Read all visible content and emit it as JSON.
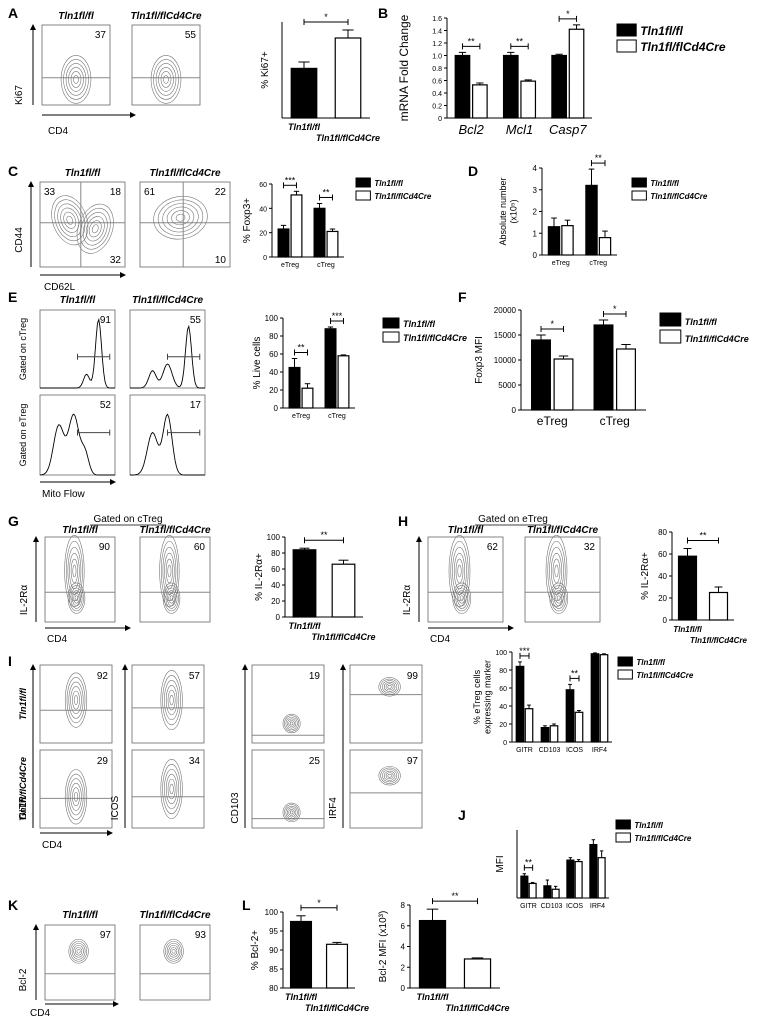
{
  "panel_letters": [
    "A",
    "B",
    "C",
    "D",
    "E",
    "F",
    "G",
    "H",
    "I",
    "J",
    "K",
    "L"
  ],
  "flow": {
    "A": {
      "headers": [
        "Tln1fl/fl",
        "Tln1fl/flCd4Cre"
      ],
      "numbers": [
        37,
        55
      ],
      "x_label": "CD4",
      "y_label": "Ki67"
    },
    "C": {
      "headers": [
        "Tln1fl/fl",
        "Tln1fl/flCd4Cre"
      ],
      "quadrants": [
        [
          33,
          18,
          32
        ],
        [
          61,
          22,
          10
        ]
      ],
      "x_label": "CD62L",
      "y_label": "CD44"
    },
    "E": {
      "headers": [
        "Tln1fl/fl",
        "Tln1fl/flCd4Cre"
      ],
      "row_labels": [
        "Gated on cTreg",
        "Gated on eTreg"
      ],
      "numbers": [
        [
          91,
          55
        ],
        [
          52,
          17
        ]
      ],
      "x_label": "Mito Flow"
    },
    "G": {
      "title": "Gated on cTreg",
      "headers": [
        "Tln1fl/fl",
        "Tln1fl/flCd4Cre"
      ],
      "numbers": [
        90,
        60
      ],
      "x_label": "CD4",
      "y_label": "IL-2Rα"
    },
    "H": {
      "title": "Gated on eTreg",
      "headers": [
        "Tln1fl/fl",
        "Tln1fl/flCd4Cre"
      ],
      "numbers": [
        62,
        32
      ],
      "x_label": "CD4",
      "y_label": "IL-2Rα"
    },
    "I": {
      "row_labels": [
        "Tln1fl/fl",
        "Tln1fl/flCd4Cre"
      ],
      "numbers": [
        [
          92,
          57,
          19,
          99
        ],
        [
          29,
          34,
          25,
          97
        ]
      ],
      "y_labels": [
        "GITR",
        "ICOS",
        "CD103",
        "IRF4"
      ],
      "x_label": "CD4"
    },
    "K": {
      "headers": [
        "Tln1fl/fl",
        "Tln1fl/flCd4Cre"
      ],
      "numbers": [
        97,
        93
      ],
      "x_label": "CD4",
      "y_label": "Bcl-2"
    }
  },
  "chart_data": [
    {
      "type": "bar",
      "ylabel": "% Ki67+",
      "categories": [
        "Tln1fl/fl",
        "Tln1fl/flCd4Cre"
      ],
      "values": [
        31,
        50
      ],
      "errors": [
        4,
        5
      ],
      "colors": [
        "#000000",
        "#ffffff"
      ],
      "ylim": [
        0,
        60
      ],
      "significance": "*"
    },
    {
      "type": "grouped_bar",
      "ylabel": "mRNA Fold Change",
      "categories": [
        "Bcl2",
        "Mcl1",
        "Casp7"
      ],
      "series": [
        {
          "name": "Tln1fl/fl",
          "color": "#000000",
          "values": [
            1.0,
            1.0,
            1.0
          ],
          "errors": [
            0.05,
            0.05,
            0.02
          ]
        },
        {
          "name": "Tln1fl/flCd4Cre",
          "color": "#ffffff",
          "values": [
            0.53,
            0.59,
            1.42
          ],
          "errors": [
            0.03,
            0.02,
            0.07
          ]
        }
      ],
      "ylim": [
        0,
        1.6
      ],
      "yticks": [
        0,
        0.2,
        0.4,
        0.6,
        0.8,
        {
          "value": 1,
          "label": "1.0"
        },
        1.2,
        1.4,
        1.6
      ],
      "significance": [
        "**",
        "**",
        "*"
      ]
    },
    {
      "type": "grouped_bar",
      "ylabel": "% Foxp3+",
      "categories": [
        "eTreg",
        "cTreg"
      ],
      "series": [
        {
          "name": "Tln1fl/fl",
          "color": "#000000",
          "values": [
            23,
            40
          ],
          "errors": [
            3,
            4
          ]
        },
        {
          "name": "Tln1fl/flCd4Cre",
          "color": "#ffffff",
          "values": [
            51,
            21
          ],
          "errors": [
            3,
            2
          ]
        }
      ],
      "ylim": [
        0,
        60
      ],
      "yticks": [
        0,
        20,
        40,
        60
      ],
      "significance": [
        "***",
        "**"
      ]
    },
    {
      "type": "grouped_bar",
      "ylabel": [
        "Absolute number",
        "(x10⁵)"
      ],
      "categories": [
        "eTreg",
        "cTreg"
      ],
      "series": [
        {
          "name": "Tln1fl/fl",
          "color": "#000000",
          "values": [
            1.3,
            3.2
          ],
          "errors": [
            0.4,
            0.75
          ]
        },
        {
          "name": "Tln1fl/flCd4Cre",
          "color": "#ffffff",
          "values": [
            1.35,
            0.8
          ],
          "errors": [
            0.25,
            0.3
          ]
        }
      ],
      "ylim": [
        0,
        4
      ],
      "yticks": [
        0,
        1,
        2,
        3,
        4
      ],
      "significance": [
        null,
        "**"
      ]
    },
    {
      "type": "grouped_bar",
      "ylabel": "% Live cells",
      "categories": [
        "eTreg",
        "cTreg"
      ],
      "series": [
        {
          "name": "Tln1fl/fl",
          "color": "#000000",
          "values": [
            45,
            88
          ],
          "errors": [
            10,
            2
          ]
        },
        {
          "name": "Tln1fl/flCd4Cre",
          "color": "#ffffff",
          "values": [
            22,
            58
          ],
          "errors": [
            5,
            1
          ]
        }
      ],
      "ylim": [
        0,
        100
      ],
      "yticks": [
        0,
        20,
        40,
        60,
        80,
        100
      ],
      "significance": [
        "**",
        "***"
      ]
    },
    {
      "type": "grouped_bar",
      "ylabel": "Foxp3 MFI",
      "categories": [
        "eTreg",
        "cTreg"
      ],
      "series": [
        {
          "name": "Tln1fl/fl",
          "color": "#000000",
          "values": [
            14000,
            17000
          ],
          "errors": [
            1000,
            1000
          ]
        },
        {
          "name": "Tln1fl/flCd4Cre",
          "color": "#ffffff",
          "values": [
            10200,
            12200
          ],
          "errors": [
            600,
            900
          ]
        }
      ],
      "ylim": [
        0,
        20000
      ],
      "yticks": [
        0,
        5000,
        10000,
        15000,
        20000
      ],
      "significance": [
        "*",
        "*"
      ]
    },
    {
      "type": "bar",
      "ylabel": "% IL-2Rα+",
      "categories": [
        "Tln1fl/fl",
        "Tln1fl/flCd4Cre"
      ],
      "values": [
        84,
        66
      ],
      "errors": [
        2,
        5
      ],
      "colors": [
        "#000000",
        "#ffffff"
      ],
      "ylim": [
        0,
        100
      ],
      "yticks": [
        0,
        20,
        40,
        60,
        80,
        100
      ],
      "significance": "**"
    },
    {
      "type": "bar",
      "ylabel": "% IL-2Rα+",
      "categories": [
        "Tln1fl/fl",
        "Tln1fl/flCd4Cre"
      ],
      "values": [
        58,
        25
      ],
      "errors": [
        7,
        5
      ],
      "colors": [
        "#000000",
        "#ffffff"
      ],
      "ylim": [
        0,
        80
      ],
      "yticks": [
        0,
        20,
        40,
        60,
        80
      ],
      "significance": "**"
    },
    {
      "type": "grouped_bar",
      "ylabel": [
        "% eTreg cells",
        "expressing marker"
      ],
      "categories": [
        "GITR",
        "CD103",
        "ICOS",
        "IRF4"
      ],
      "series": [
        {
          "name": "Tln1fl/fl",
          "color": "#000000",
          "values": [
            84,
            16,
            58,
            98
          ],
          "errors": [
            5,
            2,
            6,
            1
          ]
        },
        {
          "name": "Tln1fl/flCd4Cre",
          "color": "#ffffff",
          "values": [
            37,
            18,
            33,
            97
          ],
          "errors": [
            4,
            2,
            2,
            1
          ]
        }
      ],
      "ylim": [
        0,
        100
      ],
      "yticks": [
        0,
        20,
        40,
        60,
        80,
        100
      ],
      "significance": [
        "***",
        null,
        "**",
        null
      ]
    },
    {
      "type": "grouped_bar",
      "ylabel": "MFI",
      "categories": [
        "GITR",
        "CD103",
        "ICOS",
        "IRF4"
      ],
      "series": [
        {
          "name": "Tln1fl/fl",
          "color": "#000000",
          "values": [
            4.5,
            2.5,
            7.8,
            11
          ],
          "errors": [
            0.5,
            1.2,
            0.5,
            1.0
          ]
        },
        {
          "name": "Tln1fl/flCd4Cre",
          "color": "#ffffff",
          "values": [
            3,
            1.8,
            7.5,
            8.3
          ],
          "errors": [
            0.2,
            0.6,
            0.4,
            1.4
          ]
        }
      ],
      "ylim": [
        0,
        14
      ],
      "significance": [
        "**",
        null,
        null,
        null
      ]
    },
    {
      "type": "bar",
      "ylabel": "% Bcl-2+",
      "categories": [
        "Tln1fl/fl",
        "Tln1fl/flCd4Cre"
      ],
      "values": [
        97.5,
        91.5
      ],
      "errors": [
        1.5,
        0.5
      ],
      "colors": [
        "#000000",
        "#ffffff"
      ],
      "ylim": [
        80,
        100
      ],
      "yticks": [
        80,
        85,
        90,
        95,
        100
      ],
      "significance": "*"
    },
    {
      "type": "bar",
      "ylabel": "Bcl-2 MFI (x10³)",
      "categories": [
        "Tln1fl/fl",
        "Tln1fl/flCd4Cre"
      ],
      "values": [
        6.5,
        2.8
      ],
      "errors": [
        1.1,
        0.1
      ],
      "colors": [
        "#000000",
        "#ffffff"
      ],
      "ylim": [
        0,
        8
      ],
      "yticks": [
        0,
        2,
        4,
        6,
        8
      ],
      "significance": "**"
    }
  ]
}
